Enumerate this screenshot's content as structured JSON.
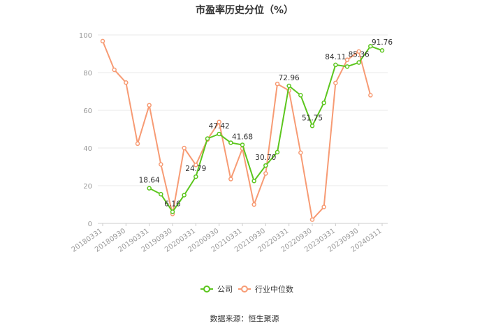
{
  "chart_data": {
    "type": "line",
    "title": "市盈率历史分位（%）",
    "xlabel": "",
    "ylabel": "",
    "ylim": [
      0,
      100
    ],
    "yticks": [
      0,
      20,
      40,
      60,
      80,
      100
    ],
    "x": [
      "20180331",
      "20180630",
      "20180930",
      "20181231",
      "20190331",
      "20190630",
      "20190930",
      "20191231",
      "20200331",
      "20200630",
      "20200930",
      "20201231",
      "20210331",
      "20210630",
      "20210930",
      "20211231",
      "20220331",
      "20220630",
      "20220930",
      "20221231",
      "20230331",
      "20230630",
      "20230930",
      "20231231",
      "20240331"
    ],
    "xtick_labels": [
      "20180331",
      "20180930",
      "20190331",
      "20190930",
      "20200331",
      "20200930",
      "20210331",
      "20210930",
      "20220331",
      "20220930",
      "20230331",
      "20230930",
      "20240311"
    ],
    "series": [
      {
        "name": "公司",
        "color": "#5cc61e",
        "values": [
          null,
          null,
          null,
          null,
          18.64,
          15.5,
          6.16,
          15.0,
          24.79,
          45.0,
          47.42,
          42.8,
          41.68,
          22.5,
          30.7,
          37.8,
          72.96,
          68.0,
          51.75,
          64.0,
          84.11,
          83.2,
          85.36,
          94.0,
          91.76
        ]
      },
      {
        "name": "行业中位数",
        "color": "#f79b74",
        "values": [
          96.7,
          81.5,
          74.7,
          42.3,
          62.7,
          31.3,
          5.0,
          40.0,
          31.0,
          44.5,
          53.8,
          23.5,
          39.7,
          10.0,
          26.5,
          74.0,
          70.5,
          37.5,
          2.0,
          8.7,
          74.5,
          86.8,
          91.2,
          68.0,
          null
        ]
      }
    ],
    "data_labels": [
      {
        "series": "公司",
        "index": 4,
        "text": "18.64"
      },
      {
        "series": "公司",
        "index": 6,
        "text": "6.16"
      },
      {
        "series": "公司",
        "index": 8,
        "text": "24.79"
      },
      {
        "series": "公司",
        "index": 10,
        "text": "47.42"
      },
      {
        "series": "公司",
        "index": 12,
        "text": "41.68"
      },
      {
        "series": "公司",
        "index": 14,
        "text": "30.70"
      },
      {
        "series": "公司",
        "index": 16,
        "text": "72.96"
      },
      {
        "series": "公司",
        "index": 18,
        "text": "51.75"
      },
      {
        "series": "公司",
        "index": 20,
        "text": "84.11"
      },
      {
        "series": "公司",
        "index": 22,
        "text": "85.36"
      },
      {
        "series": "公司",
        "index": 24,
        "text": "91.76"
      }
    ],
    "legend_position": "bottom-center",
    "grid": "horizontal",
    "source": "数据来源：恒生聚源"
  }
}
